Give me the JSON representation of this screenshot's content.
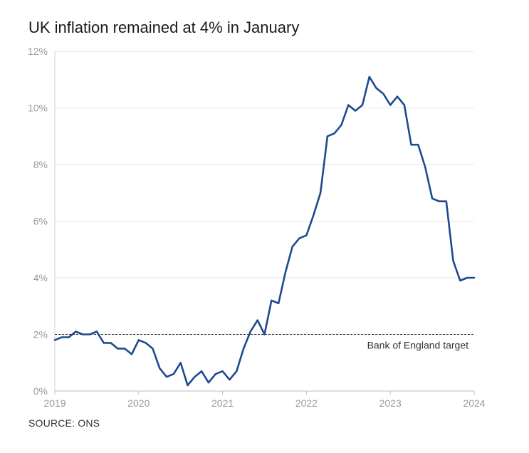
{
  "title": "UK inflation remained at 4% in January",
  "source": "SOURCE: ONS",
  "chart_data": {
    "type": "line",
    "title": "UK inflation remained at 4% in January",
    "xlabel": "",
    "ylabel": "",
    "xlim": [
      2019,
      2024
    ],
    "ylim": [
      0,
      12
    ],
    "x_ticks": [
      2019,
      2020,
      2021,
      2022,
      2023,
      2024
    ],
    "x_tick_labels": [
      "2019",
      "2020",
      "2021",
      "2022",
      "2023",
      "2024"
    ],
    "y_ticks": [
      0,
      2,
      4,
      6,
      8,
      10,
      12
    ],
    "y_tick_labels": [
      "0%",
      "2%",
      "4%",
      "6%",
      "8%",
      "10%",
      "12%"
    ],
    "grid": "horizontal",
    "legend": "none",
    "line_color": "#1d4a8f",
    "reference_line": {
      "value": 2,
      "label": "Bank of England target",
      "style": "dashed",
      "color": "#333333"
    },
    "series": [
      {
        "x": [
          2019.0,
          2019.083,
          2019.167,
          2019.25,
          2019.333,
          2019.417,
          2019.5,
          2019.583,
          2019.667,
          2019.75,
          2019.833,
          2019.917,
          2020.0,
          2020.083,
          2020.167,
          2020.25,
          2020.333,
          2020.417,
          2020.5,
          2020.583,
          2020.667,
          2020.75,
          2020.833,
          2020.917,
          2021.0,
          2021.083,
          2021.167,
          2021.25,
          2021.333,
          2021.417,
          2021.5,
          2021.583,
          2021.667,
          2021.75,
          2021.833,
          2021.917,
          2022.0,
          2022.083,
          2022.167,
          2022.25,
          2022.333,
          2022.417,
          2022.5,
          2022.583,
          2022.667,
          2022.75,
          2022.833,
          2022.917,
          2023.0,
          2023.083,
          2023.167,
          2023.25,
          2023.333,
          2023.417,
          2023.5,
          2023.583,
          2023.667,
          2023.75,
          2023.833,
          2023.917,
          2024.0
        ],
        "values": [
          1.8,
          1.9,
          1.9,
          2.1,
          2.0,
          2.0,
          2.1,
          1.7,
          1.7,
          1.5,
          1.5,
          1.3,
          1.8,
          1.7,
          1.5,
          0.8,
          0.5,
          0.6,
          1.0,
          0.2,
          0.5,
          0.7,
          0.3,
          0.6,
          0.7,
          0.4,
          0.7,
          1.5,
          2.1,
          2.5,
          2.0,
          3.2,
          3.1,
          4.2,
          5.1,
          5.4,
          5.5,
          6.2,
          7.0,
          9.0,
          9.1,
          9.4,
          10.1,
          9.9,
          10.1,
          11.1,
          10.7,
          10.5,
          10.1,
          10.4,
          10.1,
          8.7,
          8.7,
          7.9,
          6.8,
          6.7,
          6.7,
          4.6,
          3.9,
          4.0,
          4.0
        ]
      }
    ]
  }
}
